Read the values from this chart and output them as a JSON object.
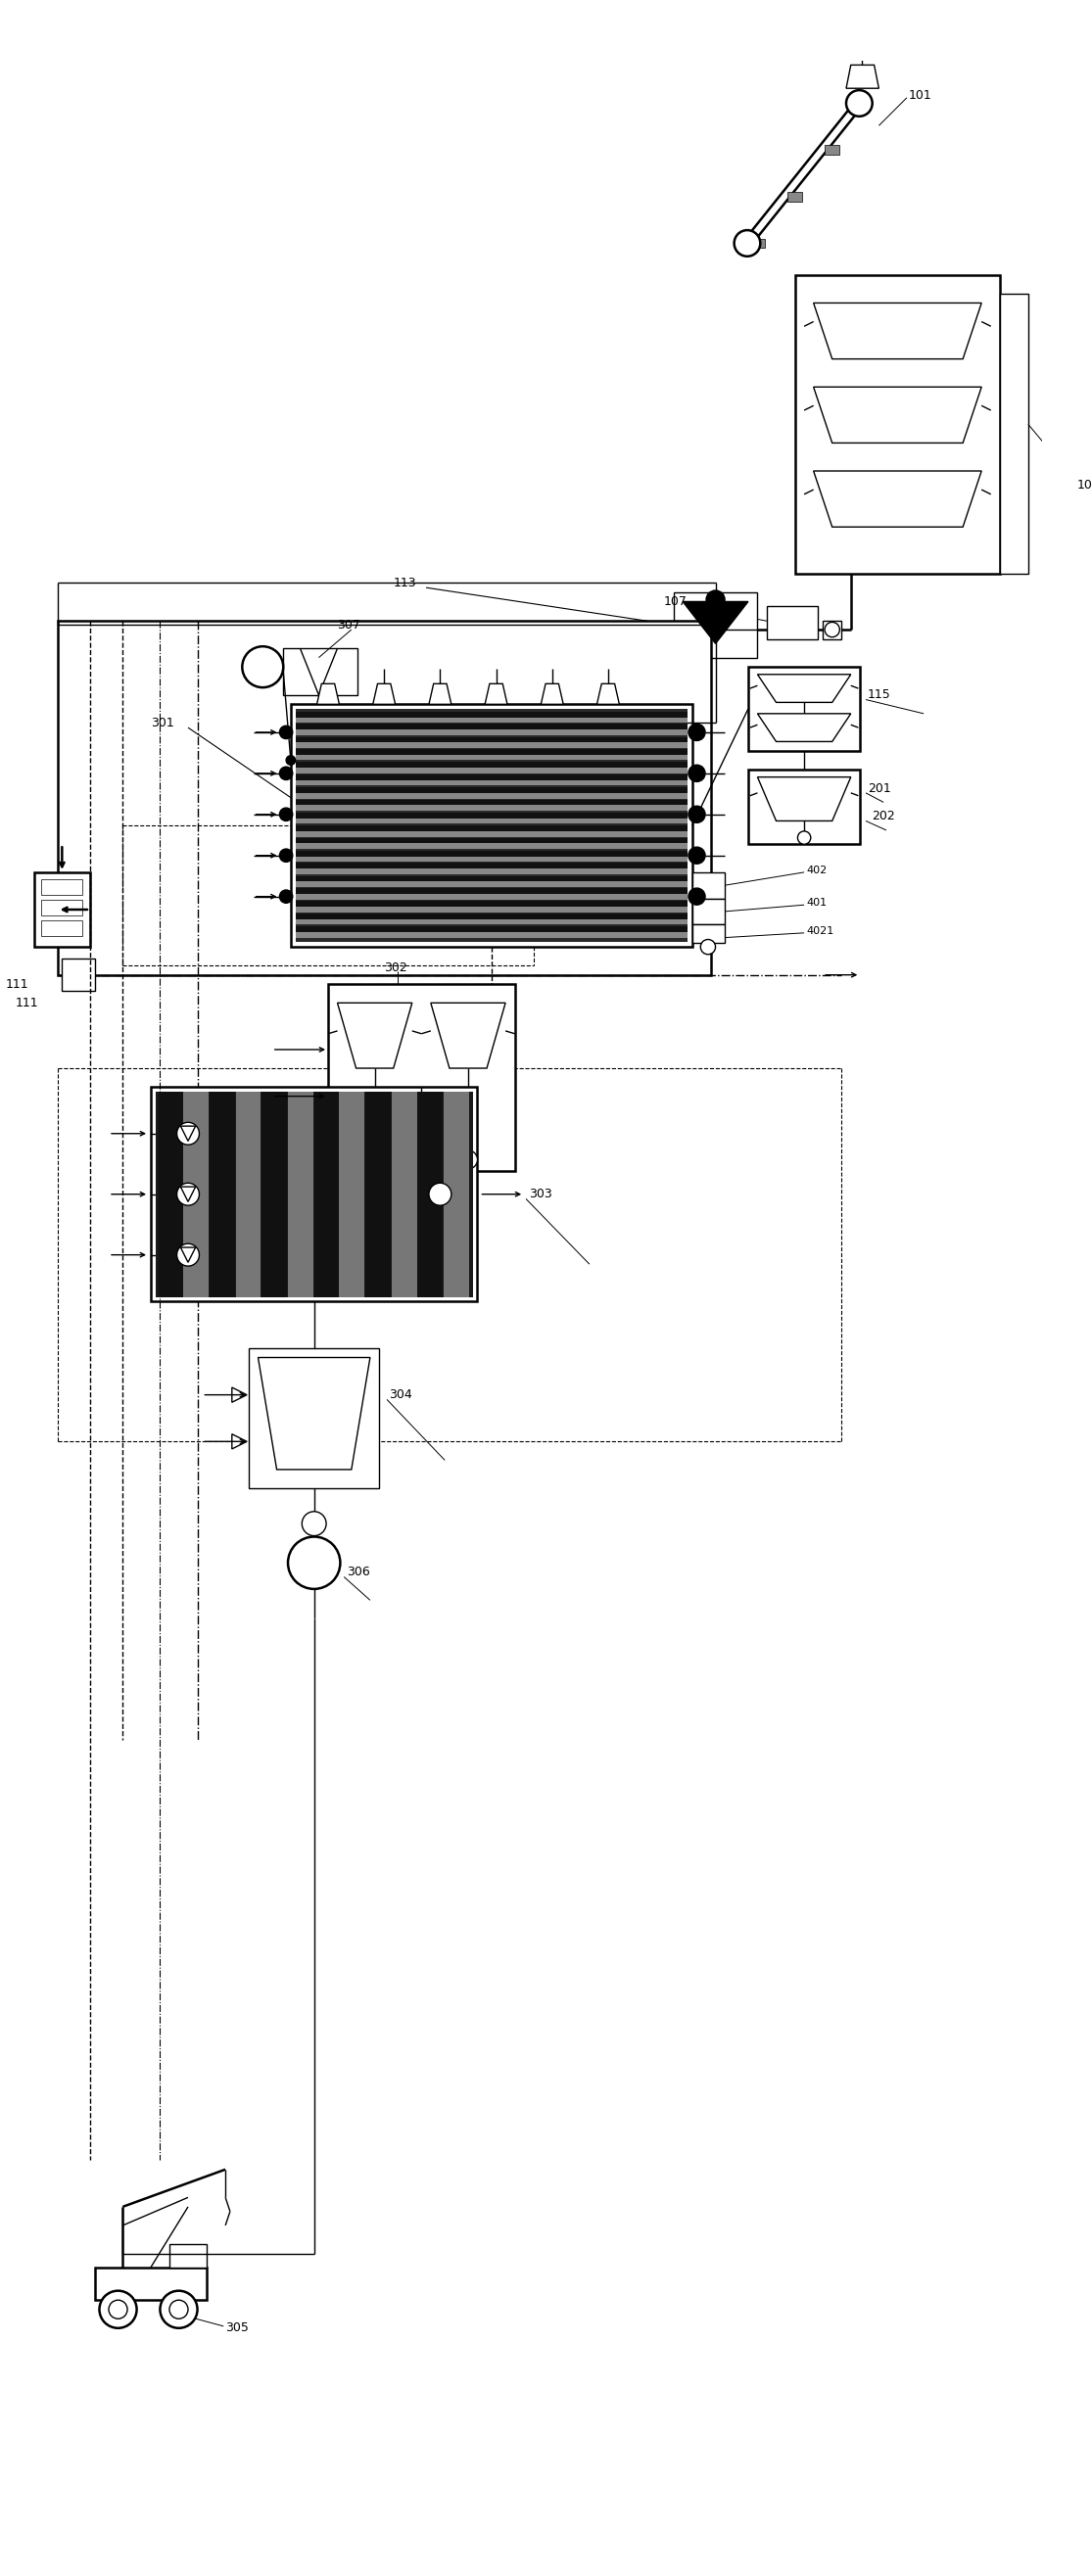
{
  "bg_color": "#ffffff",
  "line_color": "#000000",
  "lw": 1.0,
  "lw2": 1.8
}
